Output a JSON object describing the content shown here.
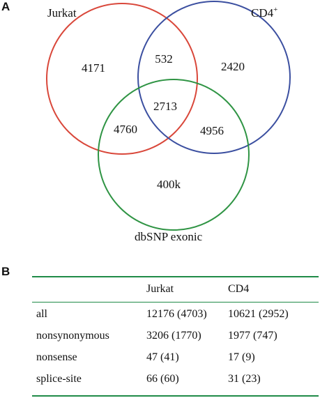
{
  "panel_a": {
    "label": "A",
    "sets": [
      {
        "name": "Jurkat",
        "color": "#d9473a"
      },
      {
        "name": "CD4",
        "superscript": "+",
        "color": "#3b4fa0"
      },
      {
        "name": "dbSNP exonic",
        "color": "#2f9444"
      }
    ],
    "regions": {
      "jurkat_only": "4171",
      "jurkat_cd4": "532",
      "cd4_only": "2420",
      "all_three": "2713",
      "jurkat_dbsnp": "4760",
      "cd4_dbsnp": "4956",
      "dbsnp_only": "400k"
    }
  },
  "panel_b": {
    "label": "B",
    "rule_color": "#1f8a47",
    "headers": [
      "",
      "Jurkat",
      "CD4"
    ],
    "rows": [
      [
        "all",
        "12176 (4703)",
        "10621 (2952)"
      ],
      [
        "nonsynonymous",
        "3206 (1770)",
        "1977 (747)"
      ],
      [
        "nonsense",
        "47 (41)",
        "17 (9)"
      ],
      [
        "splice-site",
        "66 (60)",
        "31 (23)"
      ]
    ]
  }
}
